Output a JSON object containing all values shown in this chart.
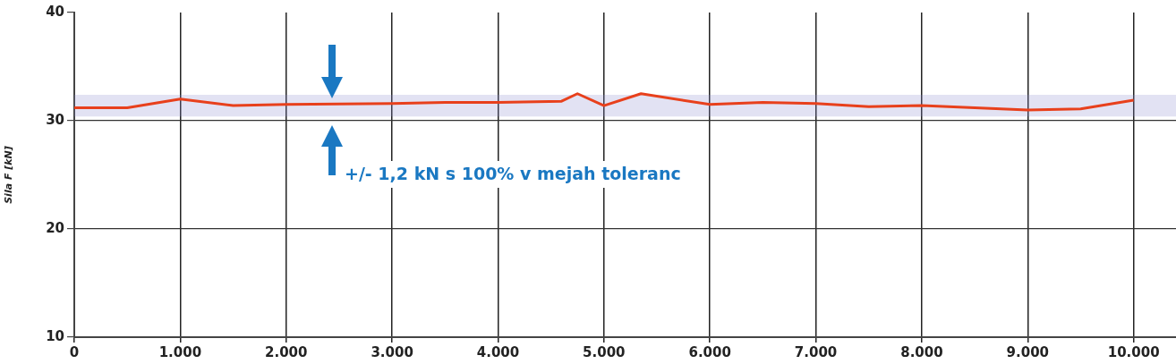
{
  "chart_data": {
    "type": "line",
    "ylabel": "Sila F [kN]",
    "x": [
      0,
      500,
      1000,
      1500,
      2000,
      3000,
      3500,
      4000,
      4600,
      4750,
      5000,
      5350,
      6000,
      6500,
      7000,
      7500,
      8000,
      9000,
      9500,
      10000
    ],
    "series": [
      {
        "color": "#e8401c",
        "values": [
          31.2,
          31.2,
          32.0,
          31.4,
          31.5,
          31.6,
          31.7,
          31.7,
          31.8,
          32.5,
          31.4,
          32.5,
          31.5,
          31.7,
          31.6,
          31.3,
          31.4,
          31.0,
          31.1,
          31.9
        ]
      }
    ],
    "xlim": [
      0,
      10400
    ],
    "xticks": [
      0,
      {
        "value": 1000,
        "label": "1.000"
      },
      {
        "value": 2000,
        "label": "2.000"
      },
      {
        "value": 3000,
        "label": "3.000"
      },
      {
        "value": 4000,
        "label": "4.000"
      },
      {
        "value": 5000,
        "label": "5.000"
      },
      {
        "value": 6000,
        "label": "6.000"
      },
      {
        "value": 7000,
        "label": "7.000"
      },
      {
        "value": 8000,
        "label": "8.000"
      },
      {
        "value": 9000,
        "label": "9.000"
      },
      {
        "value": 10000,
        "label": "10.000"
      }
    ],
    "ylim": [
      10,
      40
    ],
    "yticks": [
      10,
      20,
      30,
      40
    ],
    "bands": [
      {
        "axis": "y",
        "from": 30.4,
        "to": 32.4,
        "color": "#8c8cd0"
      }
    ],
    "annotations": [
      "+/- 1,2 kN s 100% v mejah toleranc"
    ],
    "grid": true,
    "legend": false,
    "marker": "none",
    "line_style": "solid"
  }
}
